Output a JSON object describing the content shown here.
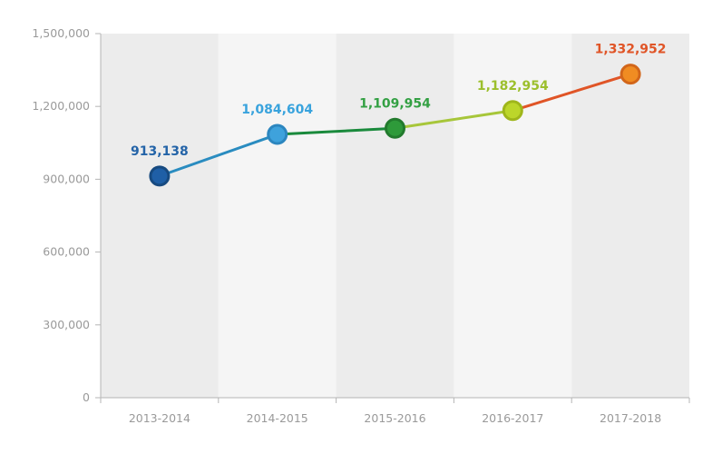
{
  "chart_data": {
    "type": "line",
    "categories": [
      "2013-2014",
      "2014-2015",
      "2015-2016",
      "2016-2017",
      "2017-2018"
    ],
    "values": [
      913138,
      1084604,
      1109954,
      1182954,
      1332952
    ],
    "value_labels": [
      "913,138",
      "1,084,604",
      "1,109,954",
      "1,182,954",
      "1,332,952"
    ],
    "yticks": [
      0,
      300000,
      600000,
      900000,
      1200000,
      1500000
    ],
    "ytick_labels": [
      "0",
      "300,000",
      "600,000",
      "900,000",
      "1,200,000",
      "1,500,000"
    ],
    "ylim": [
      0,
      1500000
    ],
    "grid": false,
    "title": "",
    "xlabel": "",
    "ylabel": "",
    "band_colors": [
      "#ececec",
      "#f5f5f5"
    ],
    "point_colors": [
      "#1f5fa6",
      "#3ea2dc",
      "#2e9a3a",
      "#bcd62a",
      "#f08c22"
    ],
    "point_stroke_colors": [
      "#174a80",
      "#2c86bf",
      "#227a2d",
      "#9fb61b",
      "#d2661a"
    ],
    "label_colors": [
      "#2464a8",
      "#39a3dd",
      "#33a043",
      "#9cbf2c",
      "#e05527"
    ],
    "segment_colors": [
      "#2a8cc0",
      "#1a8a3c",
      "#a7c63a",
      "#e05527"
    ]
  }
}
